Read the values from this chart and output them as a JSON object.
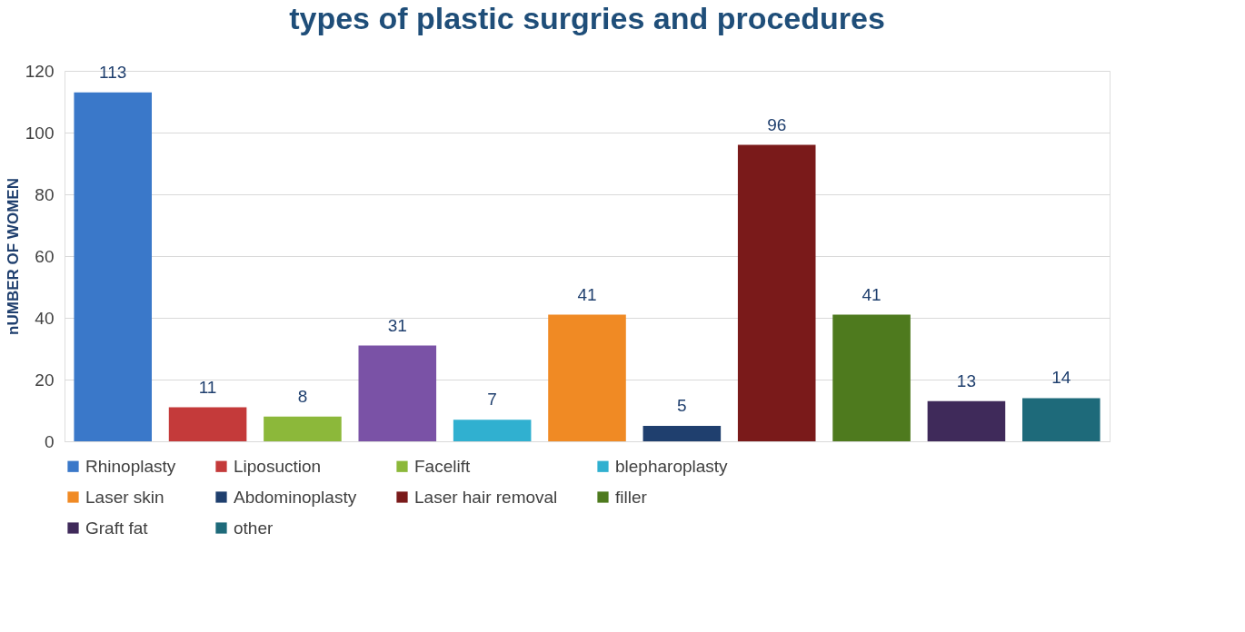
{
  "chart_data": {
    "type": "bar",
    "title": "types of plastic surgries and procedures",
    "ylabel": "nUMBER OF WOMEN",
    "categories": [
      null,
      null,
      null,
      null,
      null,
      null,
      null,
      null,
      null,
      null,
      null
    ],
    "series": [
      {
        "name": "Rhinoplasty",
        "color": "#3a78c9",
        "values": [
          113,
          null,
          null,
          null,
          null,
          null,
          null,
          null,
          null,
          null,
          null
        ]
      },
      {
        "name": "Liposuction",
        "color": "#c43a3a",
        "values": [
          null,
          11,
          null,
          null,
          null,
          null,
          null,
          null,
          null,
          null,
          null
        ]
      },
      {
        "name": "Facelift",
        "color": "#8cb83a",
        "values": [
          null,
          null,
          8,
          null,
          null,
          null,
          null,
          null,
          null,
          null,
          null
        ]
      },
      {
        "color": "#7a52a6",
        "values": [
          null,
          null,
          null,
          31,
          null,
          null,
          null,
          null,
          null,
          null,
          null
        ]
      },
      {
        "name": "blepharoplasty",
        "color": "#30b0d0",
        "values": [
          null,
          null,
          null,
          null,
          7,
          null,
          null,
          null,
          null,
          null,
          null
        ]
      },
      {
        "name": "Laser skin",
        "color": "#f08a24",
        "values": [
          null,
          null,
          null,
          null,
          null,
          41,
          null,
          null,
          null,
          null,
          null
        ]
      },
      {
        "name": "Abdominoplasty",
        "color": "#1f3f6e",
        "values": [
          null,
          null,
          null,
          null,
          null,
          null,
          5,
          null,
          null,
          null,
          null
        ]
      },
      {
        "name": "Laser hair removal",
        "color": "#7a1a1a",
        "values": [
          null,
          null,
          null,
          null,
          null,
          null,
          null,
          96,
          null,
          null,
          null
        ]
      },
      {
        "name": "filler",
        "color": "#4e7a1e",
        "values": [
          null,
          null,
          null,
          null,
          null,
          null,
          null,
          null,
          41,
          null,
          null
        ]
      },
      {
        "name": "Graft fat",
        "color": "#3f2a5a",
        "values": [
          null,
          null,
          null,
          null,
          null,
          null,
          null,
          null,
          null,
          13,
          null
        ]
      },
      {
        "name": "other",
        "color": "#1e6a7a",
        "values": [
          null,
          null,
          null,
          null,
          null,
          null,
          null,
          null,
          null,
          null,
          14
        ]
      }
    ],
    "ylim": [
      0,
      120
    ],
    "yticks": [
      0,
      20,
      40,
      60,
      80,
      100,
      120
    ],
    "grid": "y",
    "legend": "bottom",
    "data_labels": true,
    "tick_labels": "y"
  }
}
